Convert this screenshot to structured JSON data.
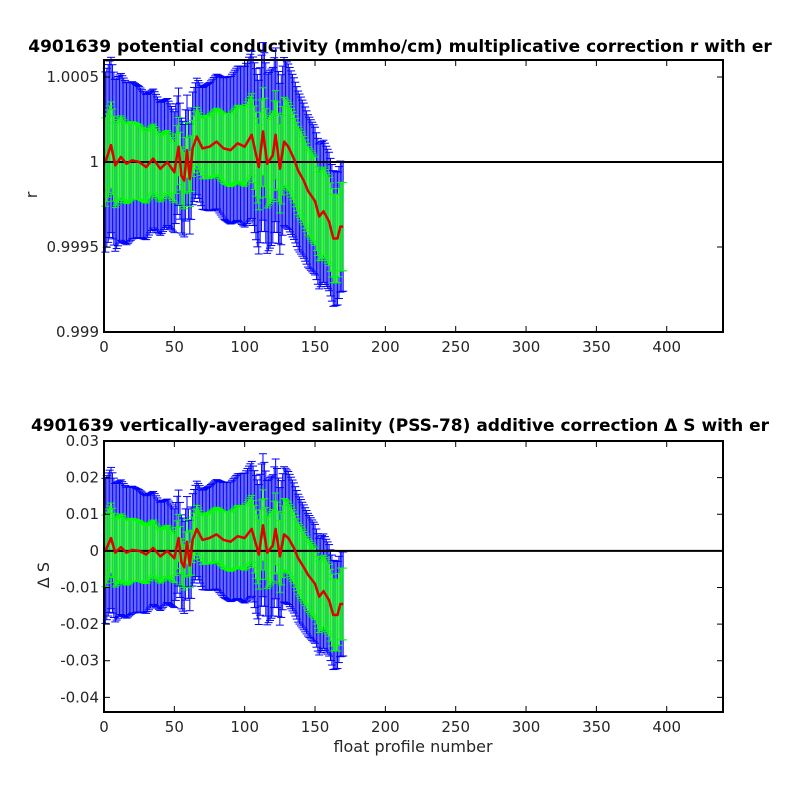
{
  "chart_data": [
    {
      "type": "line",
      "title": "4901639 potential conductivity (mmho/cm) multiplicative correction r with er",
      "xlabel": "",
      "ylabel": "r",
      "xlim": [
        0,
        440
      ],
      "ylim": [
        0.999,
        1.0006
      ],
      "xticks": [
        "0",
        "50",
        "100",
        "150",
        "200",
        "250",
        "300",
        "350",
        "400"
      ],
      "yticks": [
        "0.999",
        "0.9995",
        "1",
        "1.0005"
      ],
      "grid": false,
      "reference_line": 1,
      "x_range": [
        1,
        170
      ],
      "series": [
        {
          "role": "correction",
          "color": "#e00000",
          "x": [
            1,
            5,
            8,
            12,
            16,
            20,
            25,
            30,
            35,
            40,
            45,
            50,
            53,
            55,
            57,
            59,
            61,
            63,
            66,
            70,
            75,
            80,
            85,
            90,
            95,
            100,
            105,
            110,
            113,
            116,
            120,
            122,
            125,
            128,
            131,
            135,
            138,
            142,
            145,
            150,
            153,
            156,
            160,
            163,
            166,
            168,
            170
          ],
          "values": [
            1.0,
            1.0001,
            0.99998,
            1.00003,
            0.99999,
            1.00001,
            1.0,
            0.99997,
            1.00002,
            0.99996,
            1.0,
            0.99994,
            1.00009,
            0.99992,
            0.99989,
            1.00007,
            0.9999,
            1.00008,
            1.00015,
            1.00008,
            1.00009,
            1.00012,
            1.00008,
            1.00007,
            1.00011,
            1.00009,
            1.00016,
            0.99997,
            1.00018,
            0.99999,
            1.00004,
            1.00016,
            0.99996,
            1.00012,
            1.00009,
            1.00002,
            0.99995,
            0.99989,
            0.99983,
            0.99977,
            0.99968,
            0.99971,
            0.99965,
            0.99955,
            0.99955,
            0.99962,
            0.99962
          ]
        },
        {
          "role": "error_inner",
          "color": "#00ff00",
          "x": [
            1,
            60,
            115,
            170
          ],
          "half_width": [
            0.00026,
            0.00016,
            0.00026,
            0.00026
          ]
        },
        {
          "role": "error_outer",
          "color": "#0000ff",
          "x": [
            1,
            60,
            115,
            170
          ],
          "half_width": [
            0.00053,
            0.00032,
            0.00053,
            0.00038
          ]
        }
      ]
    },
    {
      "type": "line",
      "title": "4901639 vertically-averaged salinity (PSS-78) additive correction Δ S with er",
      "xlabel": "float profile number",
      "ylabel": "Δ S",
      "xlim": [
        0,
        440
      ],
      "ylim": [
        -0.044,
        0.03
      ],
      "xticks": [
        "0",
        "50",
        "100",
        "150",
        "200",
        "250",
        "300",
        "350",
        "400"
      ],
      "yticks": [
        "-0.04",
        "-0.03",
        "-0.02",
        "-0.01",
        "0",
        "0.01",
        "0.02",
        "0.03"
      ],
      "grid": false,
      "reference_line": 0,
      "x_range": [
        1,
        170
      ],
      "series": [
        {
          "role": "correction",
          "color": "#e00000",
          "x": [
            1,
            5,
            8,
            12,
            16,
            20,
            25,
            30,
            35,
            40,
            45,
            50,
            53,
            55,
            57,
            59,
            61,
            63,
            66,
            70,
            75,
            80,
            85,
            90,
            95,
            100,
            105,
            110,
            113,
            116,
            120,
            122,
            125,
            128,
            131,
            135,
            138,
            142,
            145,
            150,
            153,
            156,
            160,
            163,
            166,
            168,
            170
          ],
          "values": [
            0.0,
            0.0035,
            -0.0005,
            0.001,
            -0.0005,
            0.0003,
            0.0,
            -0.001,
            0.0008,
            -0.0015,
            0.0,
            -0.002,
            0.0035,
            -0.003,
            -0.0045,
            0.0025,
            -0.004,
            0.003,
            0.006,
            0.003,
            0.0035,
            0.0045,
            0.003,
            0.0025,
            0.004,
            0.0035,
            0.006,
            -0.001,
            0.007,
            -0.0005,
            0.0015,
            0.006,
            -0.0015,
            0.0045,
            0.0035,
            0.0008,
            -0.002,
            -0.0045,
            -0.0065,
            -0.009,
            -0.0125,
            -0.011,
            -0.0135,
            -0.0175,
            -0.0175,
            -0.0145,
            -0.0145
          ]
        },
        {
          "role": "error_inner",
          "color": "#00ff00",
          "x": [
            1,
            60,
            115,
            170
          ],
          "half_width": [
            0.0098,
            0.006,
            0.0098,
            0.0098
          ]
        },
        {
          "role": "error_outer",
          "color": "#0000ff",
          "x": [
            1,
            60,
            115,
            170
          ],
          "half_width": [
            0.0198,
            0.0122,
            0.0198,
            0.0142
          ]
        }
      ]
    }
  ]
}
